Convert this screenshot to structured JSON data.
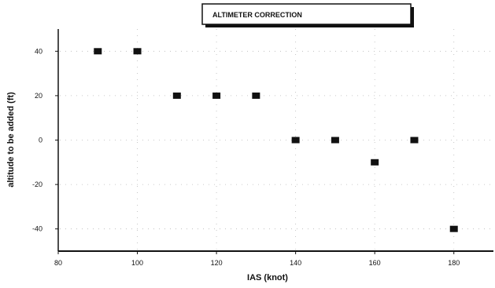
{
  "chart_data": {
    "type": "scatter",
    "title": "ALTIMETER CORRECTION",
    "xlabel": "IAS (knot)",
    "ylabel": "altitude to be added (ft)",
    "xlim": [
      80,
      190
    ],
    "ylim": [
      -50,
      50
    ],
    "x_ticks": [
      80,
      100,
      120,
      140,
      160,
      180
    ],
    "y_ticks": [
      40,
      20,
      0,
      -20,
      -40
    ],
    "grid": "dotted",
    "legend": "none",
    "series": [
      {
        "x": [
          90,
          100,
          110,
          120,
          130,
          140,
          150,
          160,
          170,
          180
        ],
        "y": [
          40,
          40,
          20,
          20,
          20,
          0,
          0,
          -10,
          0,
          -40
        ]
      }
    ]
  },
  "colors": {
    "marker": "#111111",
    "axis": "#111111",
    "grid": "#b8b8b8",
    "title_shadow": "#111111"
  }
}
